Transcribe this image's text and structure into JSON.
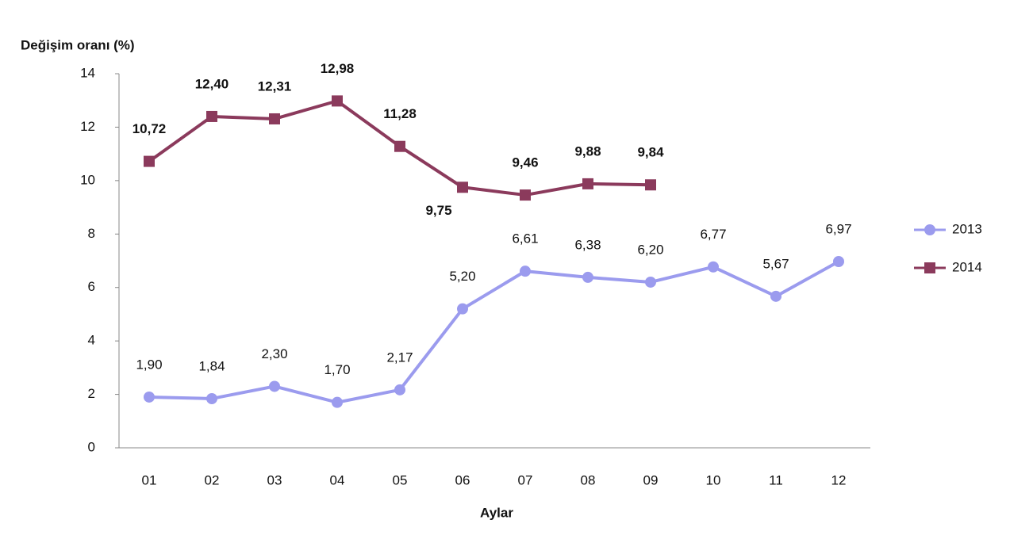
{
  "chart_data": {
    "type": "line",
    "y_label": "Değişim oranı (%)",
    "x_label": "Aylar",
    "categories": [
      "01",
      "02",
      "03",
      "04",
      "05",
      "06",
      "07",
      "08",
      "09",
      "10",
      "11",
      "12"
    ],
    "series": [
      {
        "name": "2013",
        "color": "#9b9bee",
        "marker": "circle",
        "values": [
          1.9,
          1.84,
          2.3,
          1.7,
          2.17,
          5.2,
          6.61,
          6.38,
          6.2,
          6.77,
          5.67,
          6.97
        ],
        "value_labels": [
          "1,90",
          "1,84",
          "2,30",
          "1,70",
          "2,17",
          "5,20",
          "6,61",
          "6,38",
          "6,20",
          "6,77",
          "5,67",
          "6,97"
        ]
      },
      {
        "name": "2014",
        "color": "#8b3a5c",
        "marker": "square",
        "values": [
          10.72,
          12.4,
          12.31,
          12.98,
          11.28,
          9.75,
          9.46,
          9.88,
          9.84,
          null,
          null,
          null
        ],
        "value_labels": [
          "10,72",
          "12,40",
          "12,31",
          "12,98",
          "11,28",
          "9,75",
          "9,46",
          "9,88",
          "9,84",
          null,
          null,
          null
        ]
      }
    ],
    "ylim": [
      0,
      14
    ],
    "yticks": [
      0,
      2,
      4,
      6,
      8,
      10,
      12,
      14
    ],
    "legend": "right"
  }
}
